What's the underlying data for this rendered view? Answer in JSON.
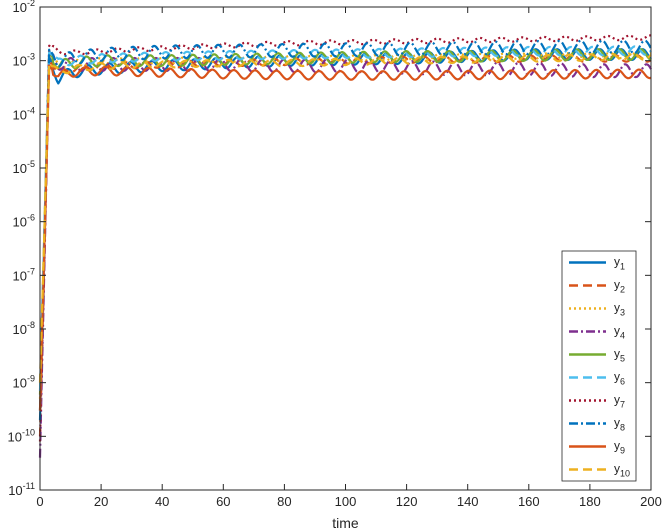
{
  "chart_data": {
    "type": "line",
    "xlabel": "time",
    "ylabel": "",
    "title": "",
    "xlim": [
      0,
      200
    ],
    "ylim": [
      1e-11,
      0.01
    ],
    "yscale": "log",
    "xticks": [
      "0",
      "20",
      "40",
      "60",
      "80",
      "100",
      "120",
      "140",
      "160",
      "180",
      "200"
    ],
    "yticks": [
      {
        "base": "10",
        "exp": "-11"
      },
      {
        "base": "10",
        "exp": "-10"
      },
      {
        "base": "10",
        "exp": "-9"
      },
      {
        "base": "10",
        "exp": "-8"
      },
      {
        "base": "10",
        "exp": "-7"
      },
      {
        "base": "10",
        "exp": "-6"
      },
      {
        "base": "10",
        "exp": "-5"
      },
      {
        "base": "10",
        "exp": "-4"
      },
      {
        "base": "10",
        "exp": "-3"
      },
      {
        "base": "10",
        "exp": "-2"
      }
    ],
    "grid": false,
    "legend_position": "bottom-right",
    "series": [
      {
        "name": "y",
        "sub": "1",
        "color": "#0072BD",
        "dash": "solid",
        "start": 3e-10,
        "peak": 0.0012,
        "x": [
          0,
          3,
          6,
          10,
          20,
          40,
          60,
          80,
          100,
          120,
          140,
          160,
          180,
          200
        ],
        "y": [
          3e-10,
          0.0012,
          0.00045,
          0.0006,
          0.0007,
          0.0008,
          0.0009,
          0.001,
          0.00105,
          0.0011,
          0.0012,
          0.0013,
          0.0013,
          0.0013
        ],
        "osc": 0.1
      },
      {
        "name": "y",
        "sub": "2",
        "color": "#D95319",
        "dash": "dashed",
        "start": 1e-10,
        "peak": 0.001,
        "x": [
          0,
          3,
          6,
          10,
          20,
          40,
          60,
          80,
          100,
          120,
          140,
          160,
          180,
          200
        ],
        "y": [
          1e-10,
          0.001,
          0.0006,
          0.0007,
          0.0008,
          0.00085,
          0.0009,
          0.00095,
          0.001,
          0.00105,
          0.00105,
          0.0011,
          0.0011,
          0.0011
        ],
        "osc": 0.06
      },
      {
        "name": "y",
        "sub": "3",
        "color": "#EDB120",
        "dash": "dotted",
        "start": 5e-10,
        "peak": 0.0013,
        "x": [
          0,
          3,
          6,
          10,
          20,
          40,
          60,
          80,
          100,
          120,
          140,
          160,
          180,
          200
        ],
        "y": [
          5e-10,
          0.0013,
          0.0008,
          0.0009,
          0.001,
          0.001,
          0.00105,
          0.0011,
          0.0011,
          0.00115,
          0.0012,
          0.0012,
          0.00125,
          0.00125
        ],
        "osc": 0.05
      },
      {
        "name": "y",
        "sub": "4",
        "color": "#7E2F8E",
        "dash": "dashdot",
        "start": 4e-11,
        "peak": 0.0014,
        "x": [
          0,
          3,
          6,
          10,
          20,
          40,
          60,
          80,
          100,
          120,
          140,
          160,
          180,
          200
        ],
        "y": [
          4e-11,
          0.0014,
          0.0009,
          0.00085,
          0.00085,
          0.00085,
          0.00085,
          0.0008,
          0.0008,
          0.00075,
          0.0007,
          0.0007,
          0.00065,
          0.00065
        ],
        "osc": 0.12
      },
      {
        "name": "y",
        "sub": "5",
        "color": "#77AC30",
        "dash": "solid",
        "start": 6e-10,
        "peak": 0.0015,
        "x": [
          0,
          3,
          6,
          10,
          20,
          40,
          60,
          80,
          100,
          120,
          140,
          160,
          180,
          200
        ],
        "y": [
          6e-10,
          0.0015,
          0.0008,
          0.0009,
          0.001,
          0.001,
          0.00105,
          0.0011,
          0.00115,
          0.0012,
          0.0012,
          0.00125,
          0.0013,
          0.0013
        ],
        "osc": 0.1
      },
      {
        "name": "y",
        "sub": "6",
        "color": "#4DBEEE",
        "dash": "dashed",
        "start": 7e-10,
        "peak": 0.0015,
        "x": [
          0,
          3,
          6,
          10,
          20,
          40,
          60,
          80,
          100,
          120,
          140,
          160,
          180,
          200
        ],
        "y": [
          7e-10,
          0.0015,
          0.0009,
          0.001,
          0.0011,
          0.0012,
          0.00125,
          0.0013,
          0.00135,
          0.0014,
          0.00145,
          0.0015,
          0.0015,
          0.00155
        ],
        "osc": 0.08
      },
      {
        "name": "y",
        "sub": "7",
        "color": "#A2142F",
        "dash": "dotted",
        "start": 8e-11,
        "peak": 0.0019,
        "x": [
          0,
          3,
          6,
          10,
          20,
          40,
          60,
          80,
          100,
          120,
          140,
          160,
          180,
          200
        ],
        "y": [
          8e-11,
          0.0019,
          0.0015,
          0.0014,
          0.0015,
          0.0017,
          0.0019,
          0.0021,
          0.0022,
          0.0023,
          0.0024,
          0.0025,
          0.0026,
          0.0027
        ],
        "osc": 0.04
      },
      {
        "name": "y",
        "sub": "8",
        "color": "#0072BD",
        "dash": "dashdot",
        "start": 2e-10,
        "peak": 0.0016,
        "x": [
          0,
          3,
          6,
          10,
          20,
          40,
          60,
          80,
          100,
          120,
          140,
          160,
          180,
          200
        ],
        "y": [
          2e-10,
          0.0016,
          0.001,
          0.0011,
          0.0013,
          0.00145,
          0.0015,
          0.00155,
          0.0016,
          0.00165,
          0.0017,
          0.00175,
          0.0018,
          0.0018
        ],
        "osc": 0.12
      },
      {
        "name": "y",
        "sub": "9",
        "color": "#D95319",
        "dash": "solid",
        "start": 3e-10,
        "peak": 0.0008,
        "x": [
          0,
          3,
          6,
          10,
          20,
          40,
          60,
          80,
          100,
          120,
          140,
          160,
          180,
          200
        ],
        "y": [
          3e-10,
          0.0008,
          0.0005,
          0.0006,
          0.00065,
          0.0006,
          0.00056,
          0.00054,
          0.00053,
          0.00053,
          0.00054,
          0.00055,
          0.00056,
          0.00057
        ],
        "osc": 0.08
      },
      {
        "name": "y",
        "sub": "10",
        "color": "#EDB120",
        "dash": "dashed",
        "start": 1e-09,
        "peak": 0.0009,
        "x": [
          0,
          3,
          6,
          10,
          20,
          40,
          60,
          80,
          100,
          120,
          140,
          160,
          180,
          200
        ],
        "y": [
          1e-09,
          0.0009,
          0.0006,
          0.0007,
          0.0008,
          0.00085,
          0.0009,
          0.0009,
          0.00095,
          0.001,
          0.00105,
          0.0011,
          0.00115,
          0.0012
        ],
        "osc": 0.06
      }
    ]
  }
}
